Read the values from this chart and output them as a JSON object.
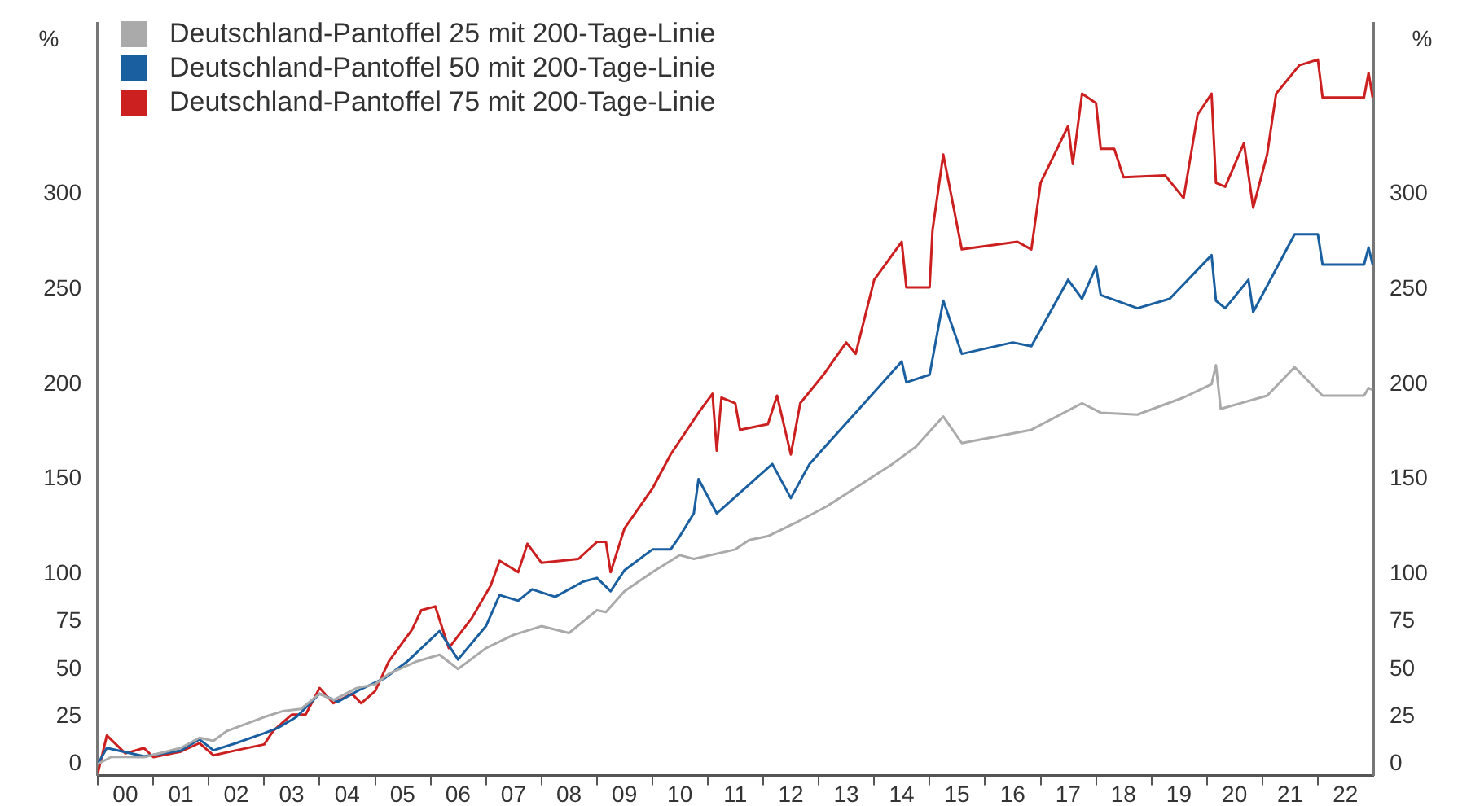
{
  "chart_data": {
    "type": "line",
    "ylabel": "%",
    "y2label": "%",
    "legend": "top left",
    "grid": false,
    "marker": "none",
    "line_style": "solid",
    "xlim": [
      "2000-01-01",
      "2023-01-01"
    ],
    "xticks": [
      {
        "value": "2000-01-01",
        "label": null
      },
      {
        "value": "2000-07-01",
        "label": "00"
      },
      {
        "value": "2001-01-01",
        "label": null
      },
      {
        "value": "2001-07-01",
        "label": "01"
      },
      {
        "value": "2002-01-01",
        "label": null
      },
      {
        "value": "2002-07-01",
        "label": "02"
      },
      {
        "value": "2003-01-01",
        "label": null
      },
      {
        "value": "2003-07-01",
        "label": "03"
      },
      {
        "value": "2004-01-01",
        "label": null
      },
      {
        "value": "2004-07-01",
        "label": "04"
      },
      {
        "value": "2005-01-01",
        "label": null
      },
      {
        "value": "2005-07-01",
        "label": "05"
      },
      {
        "value": "2006-01-01",
        "label": null
      },
      {
        "value": "2006-07-01",
        "label": "06"
      },
      {
        "value": "2007-01-01",
        "label": null
      },
      {
        "value": "2007-07-01",
        "label": "07"
      },
      {
        "value": "2008-01-01",
        "label": null
      },
      {
        "value": "2008-07-01",
        "label": "08"
      },
      {
        "value": "2009-01-01",
        "label": null
      },
      {
        "value": "2009-07-01",
        "label": "09"
      },
      {
        "value": "2010-01-01",
        "label": null
      },
      {
        "value": "2010-07-01",
        "label": "10"
      },
      {
        "value": "2011-01-01",
        "label": null
      },
      {
        "value": "2011-07-01",
        "label": "11"
      },
      {
        "value": "2012-01-01",
        "label": null
      },
      {
        "value": "2012-07-01",
        "label": "12"
      },
      {
        "value": "2013-01-01",
        "label": null
      },
      {
        "value": "2013-07-01",
        "label": "13"
      },
      {
        "value": "2014-01-01",
        "label": null
      },
      {
        "value": "2014-07-01",
        "label": "14"
      },
      {
        "value": "2015-01-01",
        "label": null
      },
      {
        "value": "2015-07-01",
        "label": "15"
      },
      {
        "value": "2016-01-01",
        "label": null
      },
      {
        "value": "2016-07-01",
        "label": "16"
      },
      {
        "value": "2017-01-01",
        "label": null
      },
      {
        "value": "2017-07-01",
        "label": "17"
      },
      {
        "value": "2018-01-01",
        "label": null
      },
      {
        "value": "2018-07-01",
        "label": "18"
      },
      {
        "value": "2019-01-01",
        "label": null
      },
      {
        "value": "2019-07-01",
        "label": "19"
      },
      {
        "value": "2020-01-01",
        "label": null
      },
      {
        "value": "2020-07-01",
        "label": "20"
      },
      {
        "value": "2021-01-01",
        "label": null
      },
      {
        "value": "2021-07-01",
        "label": "21"
      },
      {
        "value": "2022-01-01",
        "label": null
      },
      {
        "value": "2022-07-01",
        "label": "22"
      }
    ],
    "ylim": [
      -6,
      390
    ],
    "yticks": [
      0,
      25,
      50,
      75,
      100,
      150,
      200,
      250,
      300
    ],
    "y2lim": [
      -6,
      390
    ],
    "y2ticks": [
      0,
      25,
      50,
      75,
      100,
      150,
      200,
      250,
      300
    ],
    "series": [
      {
        "name": "Deutschland-Pantoffel 25 mit 200-Tage-Linie",
        "color": "#aaaaaa",
        "x": [
          "2000-01",
          "2000-04",
          "2000-11",
          "2001-07",
          "2001-11",
          "2002-02",
          "2002-05",
          "2003-01",
          "2003-05",
          "2003-09",
          "2004-01",
          "2004-04",
          "2004-09",
          "2005-01",
          "2005-04",
          "2005-10",
          "2006-03",
          "2006-07",
          "2007-01",
          "2007-07",
          "2008-01",
          "2008-07",
          "2009-01",
          "2009-03",
          "2009-07",
          "2010-01",
          "2010-07",
          "2010-10",
          "2011-07",
          "2011-10",
          "2012-02",
          "2012-08",
          "2013-03",
          "2013-10",
          "2014-05",
          "2014-10",
          "2015-04",
          "2015-08",
          "2016-11",
          "2017-10",
          "2018-02",
          "2018-10",
          "2019-08",
          "2020-02",
          "2020-03",
          "2020-04",
          "2021-02",
          "2021-08",
          "2022-02",
          "2022-11",
          "2022-12",
          "2022-12-28"
        ],
        "values": [
          0,
          3.8,
          3.6,
          8.4,
          13.8,
          12.2,
          17.4,
          24.7,
          27.8,
          29,
          37,
          33.7,
          40,
          42,
          47.5,
          54,
          57.5,
          50,
          61,
          68,
          72.6,
          69,
          81,
          80,
          91,
          101,
          110,
          108,
          113,
          118,
          120,
          127,
          136,
          147,
          158,
          167,
          183,
          169,
          176,
          190,
          185,
          184,
          193,
          200,
          210,
          187,
          194,
          209,
          194,
          194,
          198,
          197
        ]
      },
      {
        "name": "Deutschland-Pantoffel 50 mit 200-Tage-Linie",
        "color": "#1a5fa0",
        "x": [
          "2000-01",
          "2000-03",
          "2000-11",
          "2001-07",
          "2001-11",
          "2002-02",
          "2002-07",
          "2003-01",
          "2003-04",
          "2003-08",
          "2004-01",
          "2004-05",
          "2004-10",
          "2005-03",
          "2005-08",
          "2006-03",
          "2006-07",
          "2007-01",
          "2007-04",
          "2007-08",
          "2007-11",
          "2008-04",
          "2008-10",
          "2009-01",
          "2009-04",
          "2009-07",
          "2010-01",
          "2010-05",
          "2010-07",
          "2010-10",
          "2010-11",
          "2011-03",
          "2012-03",
          "2012-07",
          "2012-11",
          "2013-09",
          "2014-07",
          "2014-08",
          "2015-01",
          "2015-04",
          "2015-08",
          "2016-07",
          "2016-11",
          "2017-07",
          "2017-10",
          "2018-01",
          "2018-02",
          "2018-10",
          "2019-05",
          "2020-02",
          "2020-03",
          "2020-05",
          "2020-10",
          "2020-11",
          "2021-08",
          "2022-01",
          "2022-02",
          "2022-11",
          "2022-12",
          "2022-12-28"
        ],
        "values": [
          0,
          8.4,
          4,
          7,
          13,
          7.2,
          11,
          16.2,
          19,
          24.7,
          37,
          32.8,
          39.5,
          45,
          54,
          70,
          55,
          72.6,
          89,
          86,
          92,
          88,
          96,
          98,
          91,
          102,
          113,
          113,
          120,
          132,
          150,
          132,
          158,
          140,
          158,
          185,
          212,
          201,
          205,
          244,
          216,
          222,
          220,
          255,
          245,
          262,
          247,
          240,
          245,
          268,
          244,
          240,
          255,
          238,
          279,
          279,
          263,
          263,
          272,
          263
        ]
      },
      {
        "name": "Deutschland-Pantoffel 75 mit 200-Tage-Linie",
        "color": "#cc1f1f",
        "x": [
          "2000-01",
          "2000-03",
          "2000-07",
          "2000-11",
          "2001-01",
          "2001-07",
          "2001-11",
          "2002-02",
          "2002-07",
          "2003-01",
          "2003-03",
          "2003-07",
          "2003-10",
          "2004-01",
          "2004-04",
          "2004-08",
          "2004-10",
          "2005-01",
          "2005-04",
          "2005-09",
          "2005-11",
          "2006-02",
          "2006-05",
          "2006-10",
          "2007-02",
          "2007-04",
          "2007-08",
          "2007-10",
          "2008-01",
          "2008-09",
          "2009-01",
          "2009-03",
          "2009-04",
          "2009-07",
          "2010-01",
          "2010-05",
          "2010-11",
          "2011-02",
          "2011-03",
          "2011-04",
          "2011-07",
          "2011-08",
          "2012-02",
          "2012-04",
          "2012-07",
          "2012-09",
          "2013-02",
          "2013-07",
          "2013-09",
          "2014-01",
          "2014-07",
          "2014-08",
          "2015-01-01",
          "2015-01-20",
          "2015-04",
          "2015-08",
          "2016-08",
          "2016-11",
          "2017-01",
          "2017-07",
          "2017-08",
          "2017-10",
          "2018-01",
          "2018-02",
          "2018-05",
          "2018-07",
          "2019-04",
          "2019-08",
          "2019-11",
          "2020-02",
          "2020-03",
          "2020-05",
          "2020-09",
          "2020-11",
          "2021-02",
          "2021-04",
          "2021-09",
          "2022-01",
          "2022-02",
          "2022-11",
          "2022-12",
          "2022-12-28"
        ],
        "values": [
          -5,
          15,
          5.6,
          8.4,
          3.6,
          6.5,
          11,
          4.6,
          7.2,
          10.3,
          17.4,
          26,
          26,
          40,
          32,
          37,
          32,
          38.4,
          54,
          70.8,
          81,
          83,
          61,
          77,
          94,
          107,
          101,
          116,
          106,
          108,
          117,
          117,
          101,
          124,
          145,
          163,
          185,
          195,
          165,
          193,
          190,
          176,
          179,
          194,
          163,
          190,
          205,
          222,
          216,
          255,
          275,
          251,
          251,
          281,
          321,
          271,
          275,
          271,
          306,
          336,
          316,
          353,
          348,
          324,
          324,
          309,
          310,
          298,
          342,
          353,
          306,
          304,
          327,
          293,
          321,
          353,
          368,
          371,
          351,
          351,
          364,
          351
        ]
      }
    ]
  }
}
